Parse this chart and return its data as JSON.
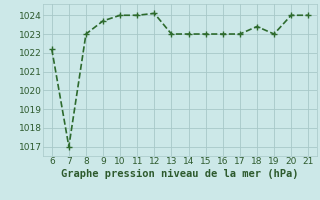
{
  "x": [
    6,
    7,
    8,
    9,
    10,
    11,
    12,
    13,
    14,
    15,
    16,
    17,
    18,
    19,
    20,
    21
  ],
  "y": [
    1022.2,
    1017.0,
    1023.0,
    1023.7,
    1024.0,
    1024.0,
    1024.1,
    1023.0,
    1023.0,
    1023.0,
    1023.0,
    1023.0,
    1023.4,
    1023.0,
    1024.0,
    1024.0
  ],
  "line_color": "#2d6a2d",
  "marker": "+",
  "marker_size": 4,
  "marker_lw": 1.0,
  "bg_color": "#cce8e8",
  "grid_color": "#a8c8c8",
  "xlabel": "Graphe pression niveau de la mer (hPa)",
  "xlabel_color": "#2d5a2d",
  "xlabel_fontsize": 7.5,
  "ylabel_ticks": [
    1017,
    1018,
    1019,
    1020,
    1021,
    1022,
    1023,
    1024
  ],
  "xlim": [
    5.5,
    21.5
  ],
  "ylim": [
    1016.5,
    1024.6
  ],
  "xticks": [
    6,
    7,
    8,
    9,
    10,
    11,
    12,
    13,
    14,
    15,
    16,
    17,
    18,
    19,
    20,
    21
  ],
  "tick_fontsize": 6.5,
  "tick_color": "#2d5a2d",
  "line_width": 1.2,
  "linestyle": "--"
}
